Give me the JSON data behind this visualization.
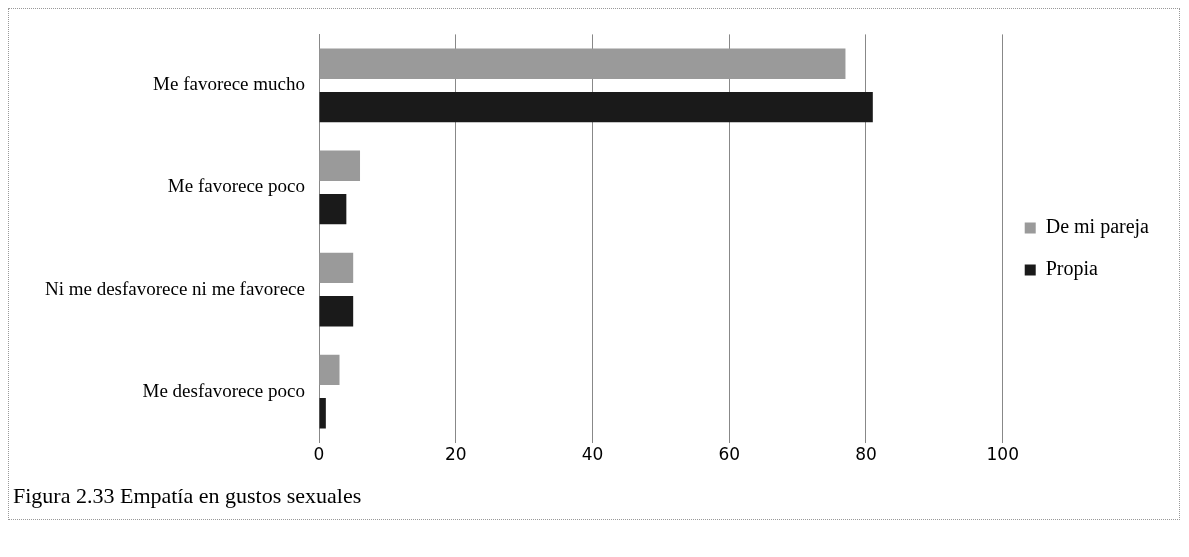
{
  "chart_data": {
    "type": "bar",
    "orientation": "horizontal",
    "title": "Figura 2.33 Empatía en gustos sexuales",
    "categories": [
      "Me favorece mucho",
      "Me favorece poco",
      "Ni me desfavorece ni me favorece",
      "Me desfavorece poco"
    ],
    "series": [
      {
        "name": "De mi pareja",
        "color": "#9a9a9a",
        "values": [
          77,
          6,
          5,
          3
        ]
      },
      {
        "name": "Propia",
        "color": "#1a1a1a",
        "values": [
          81,
          4,
          5,
          1
        ]
      }
    ],
    "xlim": [
      0,
      100
    ],
    "xticks": [
      0,
      20,
      40,
      60,
      80,
      100
    ],
    "grid": "x",
    "legend": "right"
  }
}
